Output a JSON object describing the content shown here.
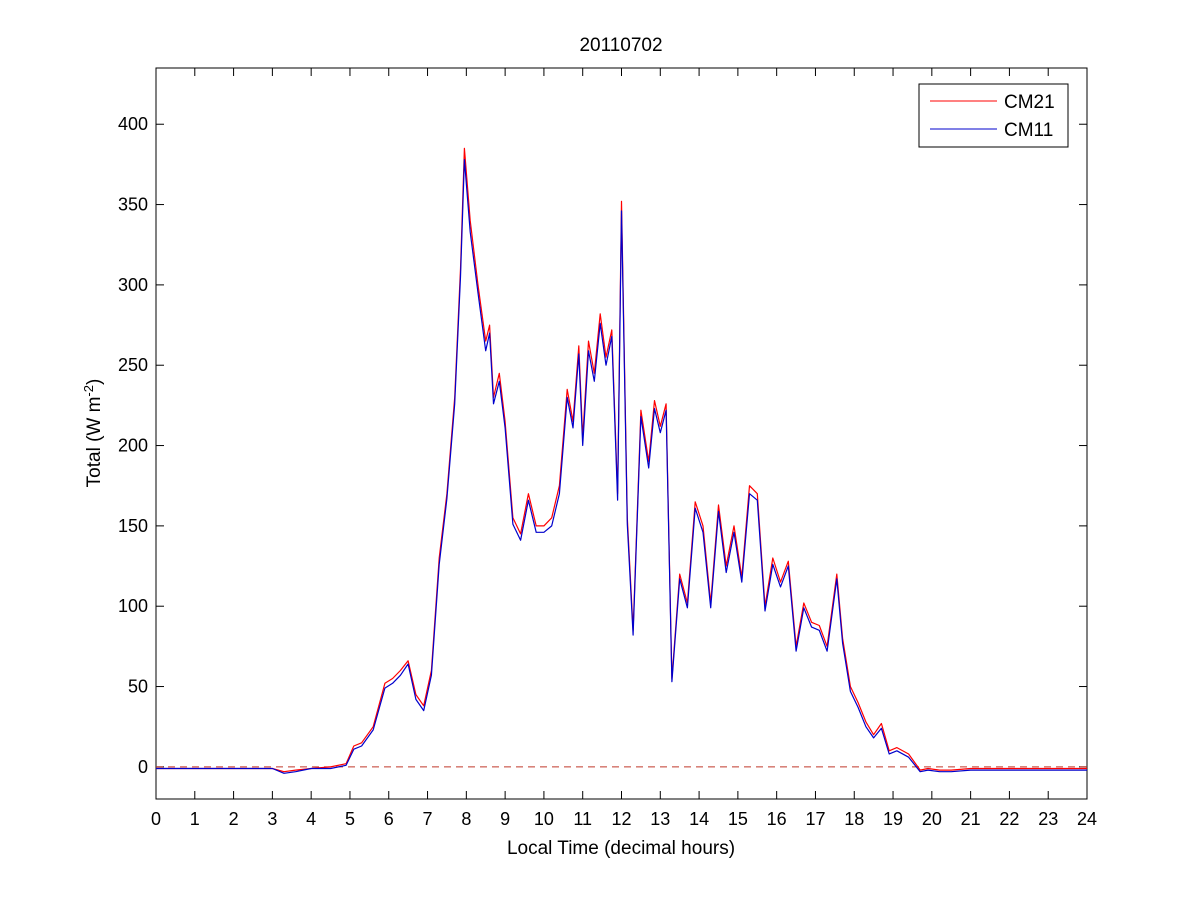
{
  "chart_data": {
    "type": "line",
    "title": "20110702",
    "xlabel": "Local Time (decimal hours)",
    "ylabel_main": "Total (W m",
    "ylabel_sup": "-2",
    "ylabel_close": ")",
    "xlim": [
      0,
      24
    ],
    "ylim": [
      -20,
      435
    ],
    "xticks": [
      "0",
      "1",
      "2",
      "3",
      "4",
      "5",
      "6",
      "7",
      "8",
      "9",
      "10",
      "11",
      "12",
      "13",
      "14",
      "15",
      "16",
      "17",
      "18",
      "19",
      "20",
      "21",
      "22",
      "23",
      "24"
    ],
    "yticks": [
      "0",
      "50",
      "100",
      "150",
      "200",
      "250",
      "300",
      "350",
      "400"
    ],
    "grid": false,
    "legend_position": "top-right",
    "reference_line": {
      "y": 0,
      "style": "dashed",
      "color": "#c0392b"
    },
    "series": [
      {
        "name": "CM21",
        "color": "#ff0000",
        "x": [
          0,
          1,
          2,
          3,
          3.3,
          3.6,
          4,
          4.5,
          4.9,
          5.1,
          5.3,
          5.6,
          5.9,
          6.1,
          6.3,
          6.5,
          6.7,
          6.9,
          7.1,
          7.3,
          7.5,
          7.7,
          7.85,
          7.95,
          8.1,
          8.3,
          8.5,
          8.6,
          8.7,
          8.85,
          9,
          9.2,
          9.4,
          9.6,
          9.8,
          10,
          10.2,
          10.4,
          10.6,
          10.75,
          10.9,
          11,
          11.15,
          11.3,
          11.45,
          11.6,
          11.75,
          11.9,
          12,
          12.15,
          12.3,
          12.5,
          12.7,
          12.85,
          13,
          13.15,
          13.3,
          13.5,
          13.7,
          13.9,
          14.1,
          14.3,
          14.5,
          14.7,
          14.9,
          15.1,
          15.3,
          15.5,
          15.7,
          15.9,
          16.1,
          16.3,
          16.5,
          16.7,
          16.9,
          17.1,
          17.3,
          17.55,
          17.7,
          17.9,
          18.1,
          18.3,
          18.5,
          18.7,
          18.9,
          19.1,
          19.4,
          19.7,
          19.9,
          20.2,
          20.5,
          21,
          21.5,
          22,
          22.5,
          23,
          23.5,
          24
        ],
        "values": [
          -1,
          -1,
          -1,
          -1,
          -3,
          -2,
          -1,
          0,
          2,
          13,
          15,
          25,
          52,
          55,
          60,
          66,
          45,
          38,
          60,
          130,
          170,
          230,
          310,
          385,
          340,
          300,
          265,
          275,
          230,
          245,
          215,
          155,
          145,
          170,
          150,
          150,
          155,
          175,
          235,
          215,
          262,
          205,
          265,
          245,
          282,
          255,
          272,
          170,
          352,
          155,
          85,
          222,
          190,
          228,
          212,
          226,
          55,
          120,
          102,
          165,
          150,
          102,
          163,
          125,
          150,
          118,
          175,
          170,
          100,
          130,
          115,
          128,
          75,
          102,
          90,
          88,
          75,
          120,
          80,
          50,
          40,
          28,
          20,
          27,
          10,
          12,
          8,
          -2,
          -1,
          -2,
          -2,
          -1,
          -1,
          -1,
          -1,
          -1,
          -1,
          -1
        ]
      },
      {
        "name": "CM11",
        "color": "#0000cc",
        "x": [
          0,
          1,
          2,
          3,
          3.3,
          3.6,
          4,
          4.5,
          4.9,
          5.1,
          5.3,
          5.6,
          5.9,
          6.1,
          6.3,
          6.5,
          6.7,
          6.9,
          7.1,
          7.3,
          7.5,
          7.7,
          7.85,
          7.95,
          8.1,
          8.3,
          8.5,
          8.6,
          8.7,
          8.85,
          9,
          9.2,
          9.4,
          9.6,
          9.8,
          10,
          10.2,
          10.4,
          10.6,
          10.75,
          10.9,
          11,
          11.15,
          11.3,
          11.45,
          11.6,
          11.75,
          11.9,
          12,
          12.15,
          12.3,
          12.5,
          12.7,
          12.85,
          13,
          13.15,
          13.3,
          13.5,
          13.7,
          13.9,
          14.1,
          14.3,
          14.5,
          14.7,
          14.9,
          15.1,
          15.3,
          15.5,
          15.7,
          15.9,
          16.1,
          16.3,
          16.5,
          16.7,
          16.9,
          17.1,
          17.3,
          17.55,
          17.7,
          17.9,
          18.1,
          18.3,
          18.5,
          18.7,
          18.9,
          19.1,
          19.4,
          19.7,
          19.9,
          20.2,
          20.5,
          21,
          21.5,
          22,
          22.5,
          23,
          23.5,
          24
        ],
        "values": [
          -1,
          -1,
          -1,
          -1,
          -4,
          -3,
          -1,
          -1,
          1,
          11,
          13,
          23,
          49,
          52,
          57,
          64,
          42,
          35,
          57,
          126,
          167,
          226,
          305,
          378,
          333,
          295,
          259,
          270,
          226,
          240,
          211,
          151,
          141,
          166,
          146,
          146,
          150,
          170,
          230,
          211,
          257,
          200,
          259,
          240,
          276,
          250,
          268,
          166,
          346,
          151,
          82,
          218,
          186,
          223,
          208,
          222,
          53,
          117,
          99,
          161,
          146,
          99,
          159,
          121,
          146,
          115,
          170,
          166,
          97,
          126,
          112,
          125,
          72,
          99,
          87,
          85,
          72,
          117,
          77,
          47,
          37,
          25,
          18,
          24,
          8,
          10,
          6,
          -3,
          -2,
          -3,
          -3,
          -2,
          -2,
          -2,
          -2,
          -2,
          -2,
          -2
        ]
      }
    ]
  }
}
